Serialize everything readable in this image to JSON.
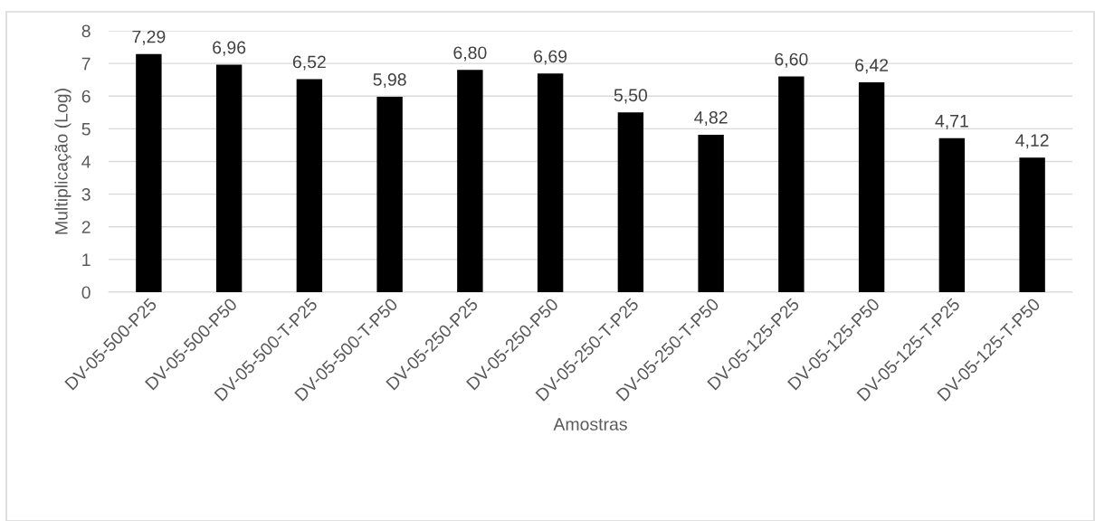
{
  "chart_data": {
    "type": "bar",
    "xlabel": "Amostras",
    "ylabel": "Multiplicação (Log)",
    "categories": [
      "DV-05-500-P25",
      "DV-05-500-P50",
      "DV-05-500-T-P25",
      "DV-05-500-T-P50",
      "DV-05-250-P25",
      "DV-05-250-P50",
      "DV-05-250-T-P25",
      "DV-05-250-T-P50",
      "DV-05-125-P25",
      "DV-05-125-P50",
      "DV-05-125-T-P25",
      "DV-05-125-T-P50"
    ],
    "values": [
      7.29,
      6.96,
      6.52,
      5.98,
      6.8,
      6.69,
      5.5,
      4.82,
      6.6,
      6.42,
      4.71,
      4.12
    ],
    "value_labels": [
      "7,29",
      "6,96",
      "6,52",
      "5,98",
      "6,80",
      "6,69",
      "5,50",
      "4,82",
      "6,60",
      "6,42",
      "4,71",
      "4,12"
    ],
    "color": "#000000",
    "ylim": [
      0,
      8
    ],
    "yticks": [
      0,
      1,
      2,
      3,
      4,
      5,
      6,
      7,
      8
    ],
    "grid": "y",
    "legend": false
  }
}
